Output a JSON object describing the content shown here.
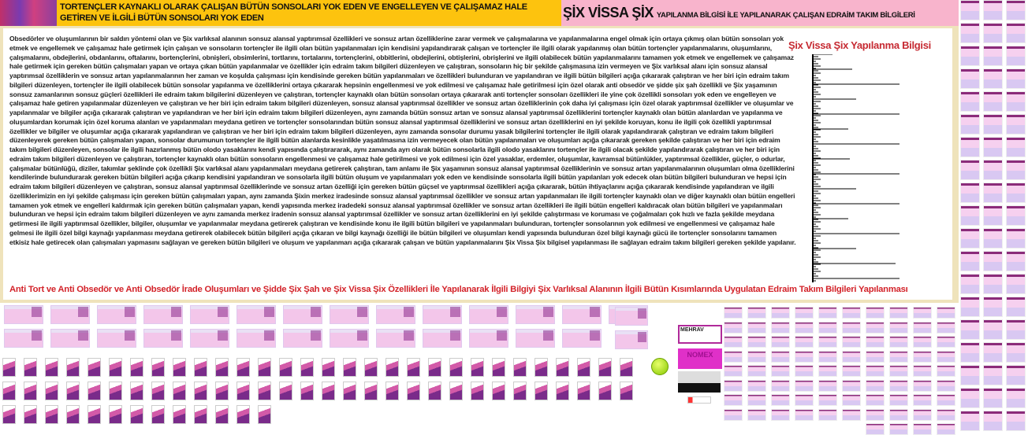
{
  "header": {
    "title": "TORTENÇLER KAYNAKLI OLARAK ÇALIŞAN BÜTÜN SONSOLARI YOK EDEN VE ENGELLEYEN VE ÇALIŞAMAZ HALE GETİREN VE İLGİLİ BÜTÜN SONSOLARI YOK EDEN",
    "brand": "ŞİX VİSSA ŞİX",
    "subtitle": "YAPILANMA BİLGİSİ İLE YAPILANARAK ÇALIŞAN EDRAİM TAKIM BİLGİLERİ"
  },
  "main": {
    "paragraph": "Obsedörler ve oluşumlarının bir saldırı yöntemi olan ve Şix varlıksal alanının sonsuz alansal yaptırımsal özellikleri ve sonsuz artan özelliklerine zarar vermek ve çalışmalarına ve yapılanmalarına engel olmak için ortaya çıkmış olan bütün sonsoları yok etmek ve engellemek ve çalışamaz hale getirmek için çalışan ve sonsoların tortençler ile ilgili olan bütün yapılanmaları için kendisini yapılandırarak çalışan ve tortençler ile ilgili olarak yapılanmış olan bütün tortençler yapılanmalarını, oluşumlarını, çalışmalarını, obdejlerini, obdanlarını, oftalarını, bortençlerini, obnişleri, obsimlerini, tortlarını, tortalarını, tortençlerini, obbitlerini, obdejlerini, obtişlerini, obrişlerini ve ilgili olabilecek bütün yapılanmalarını tamamen yok etmek ve engellemek ve çalışamaz hale getirmek için gereken bütün çalışmaları yapan ve ortaya çıkan bütün yapılanmalar ve özellikler için edraim takım bilgileri düzenleyen ve çalıştıran, sonsoların hiç bir şekilde çalışmasına izin vermeyen ve Şix varlıksal alanı için sonsuz alansal yaptırımsal özelliklerin ve sonsuz artan yapılanmalarının her zaman ve koşulda çalışması için kendisinde gereken bütün yapılanmaları ve özellikleri bulunduran ve yapılandıran ve ilgili bütün bilgileri açığa çıkararak çalıştıran ve her biri için edraim takım bilgileri düzenleyen, tortençler ile ilgili olabilecek bütün sonsolar yapılanma ve özelliklerini ortaya çıkararak hepsinin engellenmesi ve yok edilmesi ve çalışamaz hale getirilmesi için özel olarak anti obsedör ve şidde şix şah özellikli ve Şix yaşamının sonsuz zamanlarının sonsuz güçleri özellikleri ile edraim takım bilgilerini düzenleyen ve çalıştıran, tortençler kaynaklı olan bütün sonsoları ortaya çıkararak anti tortençler sonsoları özellikleri ile yine çok özellikli sonsoları yok eden ve engelleyen ve çalışamaz hale getiren yapılanmalar düzenleyen ve çalıştıran ve her biri için edraim takım bilgileri düzenleyen, sonsuz alansal yaptırımsal özellikler ve sonsuz artan özelliklerinin çok daha iyi çalışması için özel olarak yaptırımsal özellikler ve oluşumlar ve yapılanmalar ve bilgiler açığa çıkararak çalıştıran ve yapılandıran ve her biri için edraim takım bilgileri düzenleyen, aynı zamanda bütün sonsuz artan ve sonsuz alansal yaptırımsal özelliklerini tortençler kaynaklı olan bütün alanlardan ve yapılanma ve oluşumlardan korumak için özel koruma alanları ve yapılanmaları meydana getiren ve tortençler sonsolarından bütün sonsuz alansal yaptırımsal özelliklerini ve sonsuz artan özelliklerini en iyi şekilde koruyan, konu ile ilgili çok özellikli yaptırımsal özellikler ve bilgiler ve oluşumlar açığa çıkararak yapılandıran ve çalıştıran ve her biri için edraim takım bilgileri düzenleyen, aynı zamanda sonsolar durumu yasak bilgilerini tortençler ile ilgili olarak yapılandırarak çalıştıran ve edraim takım bilgileri düzenleyerek gereken bütün çalışmaları yapan, sonsolar durumunun tortençler ile ilgili bütün alanlarda kesinlikle yaşatılmasına izin vermeyecek olan bütün yapılanmaları ve oluşumları açığa çıkararak gereken şekilde çalıştıran ve her biri için edraim takım bilgileri düzenleyen, sonsolar ile ilgili hazırlanmış bütün olodo yasaklarını kendi yapısında çalıştırararak, aynı zamanda ayrı olarak bütün sonsolarla ilgili olodo yasaklarını tortençler ile ilgili olacak şekilde yapılandırarak çalıştıran ve her biri için edraim takım bilgileri düzenleyen ve çalıştıran, tortençler kaynaklı olan bütün sonsoların engellenmesi ve çalışamaz hale getirilmesi ve yok edilmesi için özel yasaklar, erdemler, oluşumlar, kavramsal bütünlükler, yaptırımsal özellikler, güçler, o odurlar, çalışmalar bütünlüğü, diziler, takımlar şeklinde çok özellikli Şix varlıksal alanı yapılanmaları meydana getirerek çalıştıran, tam anlamı ile Şix yaşamının sonsuz alansal yaptırımsal özelliklerinin ve sonsuz artan yapılanmalarının oluşumları olma özelliklerini kendilerinde bulundurarak gereken bütün bilgileri açığa çıkarıp kendisini yapılandıran ve sonsolarla ilgili bütün oluşum ve yapılanmaları yok eden ve kendisinde sonsolarla ilgili bütün yapılanları yok edecek olan bütün bilgileri bulunduran ve hepsi için edraim takım bilgileri düzenleyen ve çalıştıran, sonsuz alansal yaptırımsal özelliklerinde ve sonsuz artan özelliği için gereken bütün güçsel ve yaptırımsal özellikleri açığa çıkararak, bütün ihtiyaçlarını açığa çıkararak kendisinde yapılandıran ve ilgili özelliklerimizin en iyi şekilde çalışması için gereken bütün çalışmaları yapan, aynı zamanda Şixin merkez iradesinde sonsuz alansal yaptırımsal özellikler ve sonsuz artan yapılanmaları ile ilgili tortençler kaynaklı olan ve diğer kaynaklı olan bütün engelleri tamamen yok etmek ve engelleri kaldırmak için gereken bütün çalışmaları yapan, kendi yapısında merkez iradedeki sonsuz alansal yaptırımsal özellikler ve sonsuz artan özellikleri ile ilgili bütün engelleri kaldıracak olan bütün bilgileri ve yapılanmaları bulunduran ve hepsi için edraim takım bilgileri düzenleyen ve aynı zamanda merkez iradenin sonsuz alansal yaptırımsal özellikler ve sonsuz artan özelliklerini en iyi şekilde çalıştırması ve koruması ve çoğalmaları çok hızlı ve fazla şekilde meydana getirmesi ile ilgili yaptırımsal özellikler, bilgiler, oluşumlar ve yapılanmalar meydana getirerek çalıştıran ve kendisinde konu ile ilgili bütün bilgileri ve yapılanmaları bulunduran, tortençler sonsolarının yok edilmesi ve engellenmesi ve çalışamaz hale gelmesi ile ilgili özel bilgi kaynağı yapılanması meydana getirerek olabilecek bütün bilgileri açığa çıkaran ve bilgi kaynağı özelliği ile bütün bilgileri ve oluşumları kendi yapısında bulunduran özel bilgi kaynağı gücü ile tortençler sonsolarını tamamen etkisiz hale getirecek olan çalışmaları yapmasını sağlayan ve gereken bütün bilgileri ve oluşum ve yapılanmarı açığa çıkararak çalışan ve bütün yapılanmalarını Şix Vissa Şix bilgisel yapılanması ile sağlayan edraim takım bilgileri gereken şekilde yapılanır.",
    "side_title": "Şix Vissa Şix Yapılanma Bilgisi",
    "footer_title": "Anti Tort ve Anti Obsedör ve Anti Obsedör İrade Oluşumları ve Şidde Şix Şah ve Şix Vissa Şix Özellikleri İle Yapılanarak İlgili Bilgiyi Şix Varlıksal Alanının İlgili Bütün Kısımlarında Uygulatan Edraim Takım Bilgileri Yapılanması"
  },
  "ads": {
    "ad1": "MEHRAV",
    "ad2": "NOMEX"
  },
  "colors": {
    "header_left": "#fdc30e",
    "header_right": "#f8b4cc",
    "frame": "#efe3bb",
    "accent_red": "#d3232a"
  },
  "icons": [
    "header-photo",
    "smiley-icon",
    "thumbnail-image"
  ]
}
